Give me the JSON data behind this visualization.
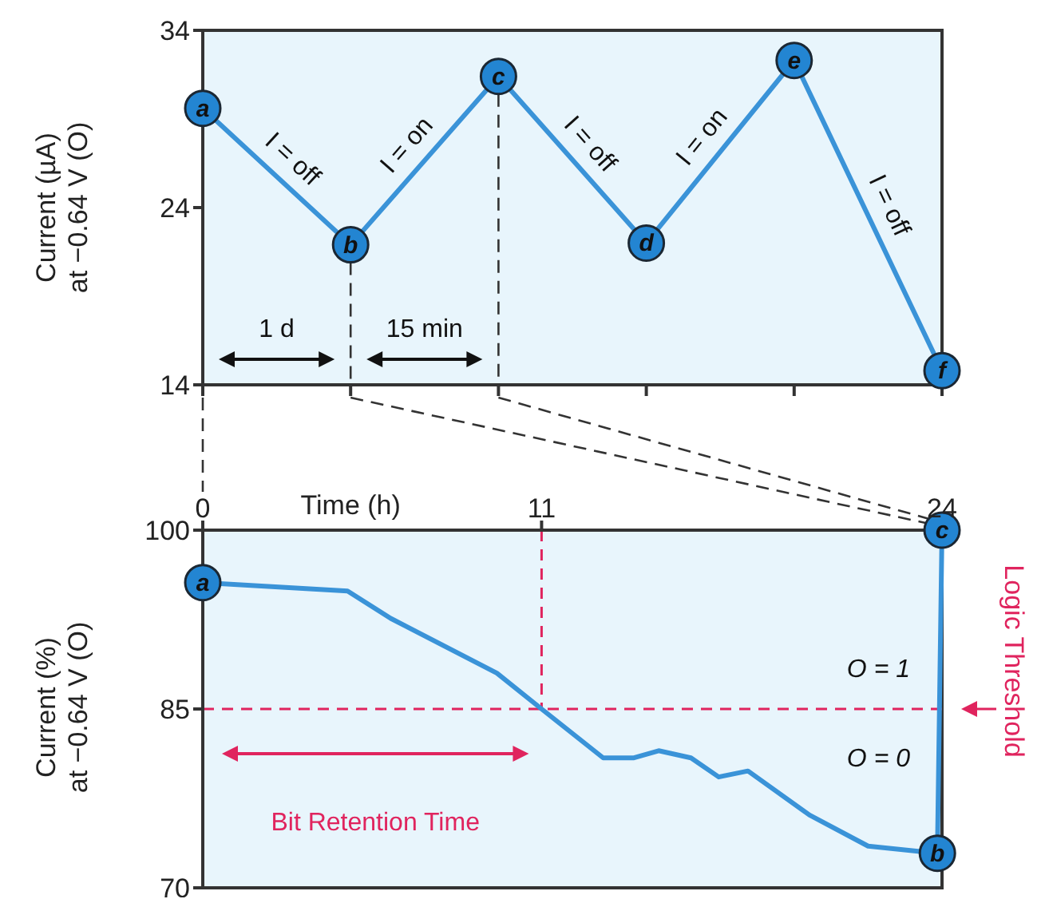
{
  "chart_data": [
    {
      "type": "line",
      "ylabel": "Current (µA)\nat −0.64 V (O)",
      "categories": [
        null,
        null,
        null,
        null,
        null,
        null
      ],
      "series": [
        {
          "color": "#3a93d8",
          "values": [
            29.6,
            21.9,
            31.4,
            22,
            32.3,
            14.8
          ],
          "value_labels": [
            "a",
            "b",
            "c",
            "d",
            "e",
            "f"
          ]
        }
      ],
      "ylim": [
        14,
        34
      ],
      "yticks": [
        14,
        24,
        34
      ],
      "grid": false,
      "marker": "circle",
      "line_style": "solid",
      "annotations": [
        "I = off",
        "I = on",
        "I = off",
        "I = on",
        "I = off",
        "1 d",
        "15 min"
      ]
    },
    {
      "type": "line",
      "xlabel": "Time (h)",
      "ylabel": "Current (%)\nat −0.64 V (O)",
      "x": [
        0,
        4.7,
        6.1,
        9.55,
        11,
        13,
        14,
        14.8,
        15.85,
        16.75,
        17.7,
        19.7,
        21.6,
        23.85,
        24
      ],
      "series": [
        {
          "color": "#3a93d8",
          "values": [
            95.6,
            94.9,
            92.6,
            88,
            85,
            80.9,
            80.9,
            81.5,
            80.9,
            79.3,
            79.8,
            76.1,
            73.5,
            72.9,
            100
          ],
          "value_labels": [
            "a",
            null,
            null,
            null,
            null,
            null,
            null,
            null,
            null,
            null,
            null,
            null,
            null,
            "b",
            "c"
          ]
        }
      ],
      "xlim": [
        0,
        24
      ],
      "xticks": [
        0,
        11,
        24
      ],
      "ylim": [
        70,
        100
      ],
      "yticks": [
        70,
        85,
        100
      ],
      "grid": false,
      "line_style": "solid",
      "ref_lines": [
        {
          "axis": "y",
          "value": 85,
          "label": "Logic Threshold",
          "color": "#e0245e",
          "line_style": "dashed"
        },
        {
          "axis": "x",
          "value": 11,
          "color": "#e0245e",
          "line_style": "dashed"
        }
      ],
      "annotations": [
        "O = 1",
        "O = 0",
        "Bit Retention Time"
      ]
    }
  ]
}
